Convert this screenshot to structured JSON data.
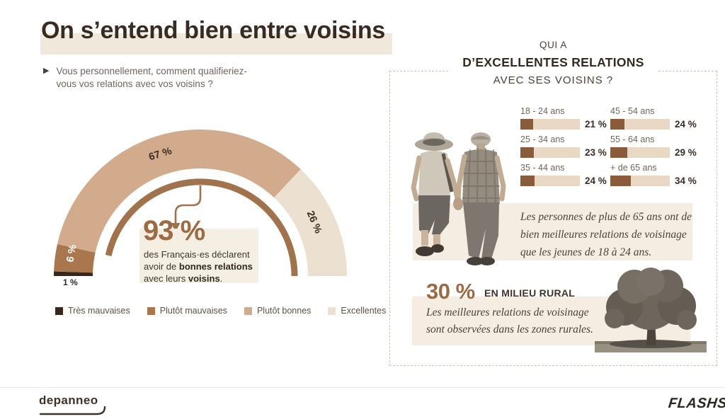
{
  "header": {
    "title": "On s’entend bien entre voisins",
    "subtitle_line1": "Vous personnellement, comment qualifieriez-",
    "subtitle_line2": "vous vos relations avec vos voisins ?"
  },
  "colors": {
    "accent_brown": "#9c6b44",
    "dark_text": "#3a2b22",
    "gray_text": "#6e655e",
    "highlight_beige": "#f0e8db",
    "box_beige": "#f5ede2",
    "bar_fill": "#8a5c3b",
    "bar_track": "#e9d9c4",
    "seg_tres_mauvaises": "#38281c",
    "seg_plutot_mauvaises": "#a9764e",
    "seg_plutot_bonnes": "#d2ab8c",
    "seg_excellentes": "#ece0d0"
  },
  "gauge": {
    "labels": {
      "seg67": "67 %",
      "seg26": "26 %",
      "seg6": "6 %",
      "seg1": "1 %"
    },
    "callout": {
      "value": "93 %",
      "line1": "des Français·es déclarent",
      "line2_pre": "avoir de ",
      "line2_bold": "bonnes relations",
      "line3_pre": "avec leurs ",
      "line3_bold": "voisins",
      "line3_post": "."
    }
  },
  "legend": [
    {
      "label": "Très mauvaises",
      "color": "#38281c"
    },
    {
      "label": "Plutôt mauvaises",
      "color": "#a9764e"
    },
    {
      "label": "Plutôt bonnes",
      "color": "#d2ab8c"
    },
    {
      "label": "Excellentes",
      "color": "#ece0d0"
    }
  ],
  "panel": {
    "title_line1": "QUI A",
    "title_line2": "D’EXCELLENTES RELATIONS",
    "title_line3": "AVEC SES VOISINS ?",
    "bars": [
      {
        "label": "18 - 24 ans",
        "value": 21,
        "display": "21 %"
      },
      {
        "label": "25 - 34 ans",
        "value": 23,
        "display": "23 %"
      },
      {
        "label": "35 - 44 ans",
        "value": 24,
        "display": "24 %"
      },
      {
        "label": "45 - 54 ans",
        "value": 24,
        "display": "24 %"
      },
      {
        "label": "55 - 64 ans",
        "value": 29,
        "display": "29 %"
      },
      {
        "label": "+ de 65 ans",
        "value": 34,
        "display": "34 %"
      }
    ],
    "note_over65": [
      "Les personnes de plus de 65 ans ont de",
      "bien meilleures relations de voisinage",
      "que les jeunes de 18 à 24 ans."
    ],
    "rural": {
      "value": "30 %",
      "label": "EN MILIEU RURAL",
      "line1": "Les meilleures relations de voisinage",
      "line2": "sont observées dans les zones rurales."
    }
  },
  "footer": {
    "brand_left": "depanneo",
    "brand_right": "FLASHS"
  },
  "chart_data": [
    {
      "type": "pie",
      "variant": "semi-donut-gauge",
      "title": "Vous personnellement, comment qualifieriez-vous vos relations avec vos voisins ?",
      "categories": [
        "Très mauvaises",
        "Plutôt mauvaises",
        "Plutôt bonnes",
        "Excellentes"
      ],
      "values": [
        1,
        6,
        67,
        26
      ],
      "unit": "%",
      "colors": [
        "#38281c",
        "#a9764e",
        "#d2ab8c",
        "#ece0d0"
      ],
      "annotation": {
        "value": 93,
        "text": "des Français·es déclarent avoir de bonnes relations avec leurs voisins."
      },
      "legend_position": "bottom"
    },
    {
      "type": "bar",
      "orientation": "horizontal",
      "title": "Qui a d’excellentes relations avec ses voisins ?",
      "categories": [
        "18 - 24 ans",
        "25 - 34 ans",
        "35 - 44 ans",
        "45 - 54 ans",
        "55 - 64 ans",
        "+ de 65 ans"
      ],
      "values": [
        21,
        23,
        24,
        24,
        29,
        34
      ],
      "unit": "%",
      "xlim": [
        0,
        100
      ],
      "annotations": [
        "30 % en milieu rural : les meilleures relations de voisinage sont observées dans les zones rurales."
      ]
    }
  ]
}
